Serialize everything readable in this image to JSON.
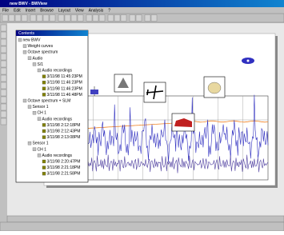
{
  "window": {
    "title": "new BWV - BWView",
    "menu": [
      "File",
      "Edit",
      "Insert",
      "Browse",
      "Layout",
      "View",
      "Analysis",
      "?"
    ]
  },
  "contents": {
    "title": "Contents",
    "tree": [
      {
        "label": "new BWV",
        "level": 0
      },
      {
        "label": "Weight curves",
        "level": 1
      },
      {
        "label": "Octave spectrum",
        "level": 1
      },
      {
        "label": "Audio",
        "level": 2
      },
      {
        "label": "S/1",
        "level": 3
      },
      {
        "label": "Audio recordings",
        "level": 4
      },
      {
        "label": "3/11/98 11:45:23PM",
        "level": 5
      },
      {
        "label": "3/11/98 11:46:23PM",
        "level": 5
      },
      {
        "label": "3/11/98 11:46:23PM",
        "level": 5
      },
      {
        "label": "3/11/98 11:46:48PM",
        "level": 5
      },
      {
        "label": "Octave spectrum + SLM",
        "level": 1
      },
      {
        "label": "Sensor 1",
        "level": 2
      },
      {
        "label": "CH 1",
        "level": 3
      },
      {
        "label": "Audio recordings",
        "level": 4
      },
      {
        "label": "3/11/98 2:12:18PM",
        "level": 5
      },
      {
        "label": "3/11/98 2:12:43PM",
        "level": 5
      },
      {
        "label": "3/11/98 2:13:08PM",
        "level": 5
      },
      {
        "label": "Sensor 1",
        "level": 2
      },
      {
        "label": "CH 1",
        "level": 3
      },
      {
        "label": "Audio recordings",
        "level": 4
      },
      {
        "label": "3/11/98 2:20:47PM",
        "level": 5
      },
      {
        "label": "3/11/98 2:21:18PM",
        "level": 5
      },
      {
        "label": "3/11/98 2:21:58PM",
        "level": 5
      }
    ]
  }
}
